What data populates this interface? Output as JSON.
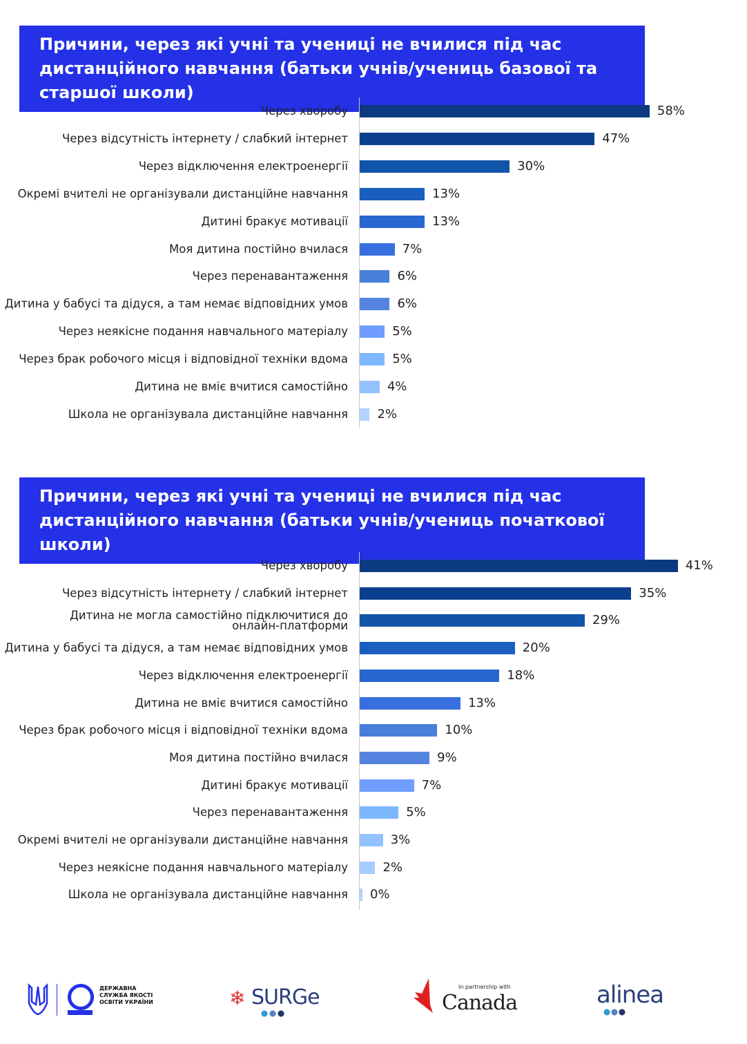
{
  "chart_data": [
    {
      "type": "bar",
      "orientation": "horizontal",
      "title": "Причини, через які учні та учениці не вчилися під час дистанційного навчання (батьки учнів/учениць базової та старшої школи)",
      "categories": [
        "Через хворобу",
        "Через відсутність інтернету / слабкий інтернет",
        "Через відключення електроенергії",
        "Окремі вчителі не організували дистанційне навчання",
        "Дитині бракує мотивації",
        "Моя дитина постійно вчилася",
        "Через перенавантаження",
        "Дитина у бабусі та дідуся, а там немає відповідних умов",
        "Через неякісне подання навчального матеріалу",
        "Через брак робочого місця і відповідної техніки вдома",
        "Дитина не вміє вчитися самостійно",
        "Школа не організувала дистанційне навчання"
      ],
      "values": [
        58,
        47,
        30,
        13,
        13,
        7,
        6,
        6,
        5,
        5,
        4,
        2
      ],
      "labels": [
        "58%",
        "47%",
        "30%",
        "13%",
        "13%",
        "7%",
        "6%",
        "6%",
        "5%",
        "5%",
        "4%",
        "2%"
      ],
      "colors": [
        "#0b3a80",
        "#0b408f",
        "#1155a8",
        "#1a5fbf",
        "#2a66d0",
        "#386fdf",
        "#477fdb",
        "#5584e0",
        "#709eff",
        "#7db8ff",
        "#94c2ff",
        "#b0d3ff"
      ]
    },
    {
      "type": "bar",
      "orientation": "horizontal",
      "title": "Причини, через які учні та учениці не вчилися під час дистанційного навчання (батьки учнів/учениць початкової школи)",
      "categories": [
        "Через хворобу",
        "Через відсутність інтернету / слабкий інтернет",
        "Дитина не могла самостійно підключитися до\nонлайн-платформи",
        "Дитина у бабусі та дідуся, а там немає відповідних умов",
        "Через відключення електроенергії",
        "Дитина не вміє вчитися самостійно",
        "Через брак робочого місця і відповідної техніки вдома",
        "Моя дитина постійно вчилася",
        "Дитині бракує мотивації",
        "Через перенавантаження",
        "Окремі вчителі не організували дистанційне навчання",
        "Через неякісне подання навчального матеріалу",
        "Школа не організувала дистанційне навчання"
      ],
      "values": [
        41,
        35,
        29,
        20,
        18,
        13,
        10,
        9,
        7,
        5,
        3,
        2,
        0
      ],
      "labels": [
        "41%",
        "35%",
        "29%",
        "20%",
        "18%",
        "13%",
        "10%",
        "9%",
        "7%",
        "5%",
        "3%",
        "2%",
        "0%"
      ],
      "colors": [
        "#0b3a80",
        "#0b408f",
        "#1155a8",
        "#1a5fbf",
        "#2a66d0",
        "#386fdf",
        "#477fdb",
        "#5584e0",
        "#709eff",
        "#7db8ff",
        "#94c2ff",
        "#a8ccff",
        "#b0d3ff"
      ]
    }
  ],
  "logos": {
    "dsyao": "ДЕРЖАВНА СЛУЖБА ЯКОСТІ ОСВІТИ УКРАЇНИ",
    "surge": "SURGe",
    "canada_tag": "In partnership with",
    "canada": "Canada",
    "alinea": "alinea"
  }
}
